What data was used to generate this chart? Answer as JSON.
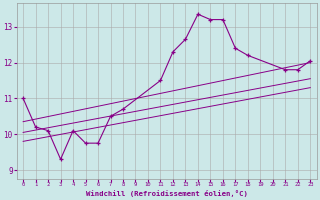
{
  "bg_color": "#cce8e8",
  "grid_color": "#aaaaaa",
  "line_color": "#880088",
  "xlabel": "Windchill (Refroidissement éolien,°C)",
  "windchill_x": [
    0,
    1,
    2,
    3,
    4,
    5,
    6,
    7,
    8,
    11,
    12,
    13,
    14,
    15,
    16,
    17,
    18,
    21,
    22,
    23
  ],
  "windchill_y": [
    11.0,
    10.2,
    10.1,
    9.3,
    10.1,
    9.75,
    9.75,
    10.5,
    10.7,
    11.5,
    12.3,
    12.65,
    13.35,
    13.2,
    13.2,
    12.4,
    12.2,
    11.8,
    11.8,
    12.05
  ],
  "line1_x": [
    0,
    23
  ],
  "line1_y": [
    10.35,
    12.0
  ],
  "line2_x": [
    0,
    23
  ],
  "line2_y": [
    10.05,
    11.55
  ],
  "line3_x": [
    0,
    23
  ],
  "line3_y": [
    9.8,
    11.3
  ],
  "ylim": [
    8.75,
    13.65
  ],
  "yticks": [
    9,
    10,
    11,
    12,
    13
  ],
  "xlim": [
    -0.5,
    23.5
  ],
  "xticks": [
    0,
    1,
    2,
    3,
    4,
    5,
    6,
    7,
    8,
    9,
    10,
    11,
    12,
    13,
    14,
    15,
    16,
    17,
    18,
    19,
    20,
    21,
    22,
    23
  ]
}
